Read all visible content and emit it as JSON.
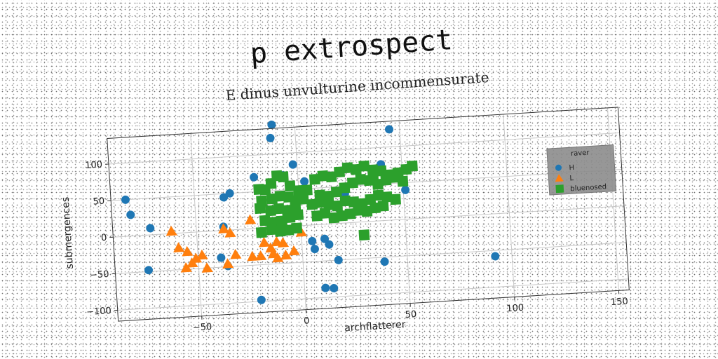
{
  "chart_data": {
    "type": "scatter",
    "title": "p extrospect",
    "subtitle": "E dinus unvulturine incommensurate",
    "xlabel": "archflatterer",
    "ylabel": "submergences",
    "xlim": [
      -90,
      155
    ],
    "ylim": [
      -115,
      135
    ],
    "xticks": [
      -50,
      0,
      50,
      100,
      150
    ],
    "yticks": [
      -100,
      -50,
      0,
      50,
      100
    ],
    "grid": true,
    "legend": {
      "title": "raver",
      "placement": "right"
    },
    "series": [
      {
        "name": "H",
        "marker": "circle",
        "color": "#1f77b4",
        "points": [
          [
            -83,
            50
          ],
          [
            -81,
            29
          ],
          [
            -72,
            9
          ],
          [
            -74,
            -48
          ],
          [
            -36,
            45
          ],
          [
            -33,
            50
          ],
          [
            -37,
            5
          ],
          [
            -39,
            -37
          ],
          [
            -36,
            -49
          ],
          [
            -21,
            70
          ],
          [
            -11,
            140
          ],
          [
            -12,
            122
          ],
          [
            -7,
            70
          ],
          [
            -2,
            84
          ],
          [
            45,
            124
          ],
          [
            40,
            77
          ],
          [
            51,
            40
          ],
          [
            22,
            40
          ],
          [
            3,
            60
          ],
          [
            6,
            -33
          ],
          [
            13,
            -28
          ],
          [
            11,
            -20
          ],
          [
            17,
            -50
          ],
          [
            5,
            -22
          ],
          [
            -21,
            -98
          ],
          [
            10,
            -87
          ],
          [
            14,
            -88
          ],
          [
            39,
            -56
          ],
          [
            92,
            -58
          ]
        ]
      },
      {
        "name": "L",
        "marker": "triangle",
        "color": "#ff7f0e",
        "points": [
          [
            -62,
            3
          ],
          [
            -59,
            -20
          ],
          [
            -55,
            -26
          ],
          [
            -51,
            -36
          ],
          [
            -53,
            -42
          ],
          [
            -48,
            -32
          ],
          [
            -56,
            -48
          ],
          [
            -46,
            -50
          ],
          [
            -37,
            2
          ],
          [
            -34,
            -4
          ],
          [
            -32,
            -34
          ],
          [
            -36,
            -46
          ],
          [
            -24,
            12
          ],
          [
            -18,
            -20
          ],
          [
            -15,
            -28
          ],
          [
            -20,
            -38
          ],
          [
            -12,
            -20
          ],
          [
            -9,
            -22
          ],
          [
            -12,
            -42
          ],
          [
            -8,
            -39
          ],
          [
            -4,
            -34
          ],
          [
            0,
            -9
          ],
          [
            -24,
            -38
          ],
          [
            -14,
            -36
          ]
        ]
      },
      {
        "name": "bluenosed",
        "marker": "square",
        "color": "#2ca02c",
        "points": [
          [
            -19,
            53
          ],
          [
            -16,
            52
          ],
          [
            -13,
            60
          ],
          [
            -10,
            70
          ],
          [
            -7,
            68
          ],
          [
            -4,
            55
          ],
          [
            -18,
            37
          ],
          [
            -13,
            39
          ],
          [
            -9,
            42
          ],
          [
            -5,
            40
          ],
          [
            -19,
            27
          ],
          [
            -14,
            23
          ],
          [
            -10,
            25
          ],
          [
            -6,
            22
          ],
          [
            -2,
            26
          ],
          [
            -17,
            10
          ],
          [
            -13,
            7
          ],
          [
            -9,
            8
          ],
          [
            -5,
            12
          ],
          [
            -1,
            15
          ],
          [
            -19,
            -6
          ],
          [
            -14,
            -3
          ],
          [
            -10,
            -6
          ],
          [
            -6,
            -5
          ],
          [
            -2,
            -3
          ],
          [
            0,
            48
          ],
          [
            4,
            48
          ],
          [
            10,
            40
          ],
          [
            14,
            38
          ],
          [
            18,
            43
          ],
          [
            22,
            48
          ],
          [
            26,
            54
          ],
          [
            30,
            58
          ],
          [
            34,
            56
          ],
          [
            38,
            50
          ],
          [
            42,
            55
          ],
          [
            46,
            58
          ],
          [
            50,
            52
          ],
          [
            8,
            62
          ],
          [
            12,
            66
          ],
          [
            16,
            64
          ],
          [
            20,
            70
          ],
          [
            24,
            75
          ],
          [
            28,
            72
          ],
          [
            32,
            76
          ],
          [
            36,
            70
          ],
          [
            40,
            68
          ],
          [
            44,
            62
          ],
          [
            48,
            64
          ],
          [
            52,
            68
          ],
          [
            55,
            72
          ],
          [
            6,
            28
          ],
          [
            10,
            30
          ],
          [
            14,
            26
          ],
          [
            18,
            24
          ],
          [
            22,
            30
          ],
          [
            26,
            28
          ],
          [
            30,
            25
          ],
          [
            34,
            30
          ],
          [
            38,
            35
          ],
          [
            42,
            32
          ],
          [
            46,
            28
          ],
          [
            8,
            12
          ],
          [
            12,
            15
          ],
          [
            16,
            8
          ],
          [
            20,
            10
          ],
          [
            24,
            12
          ],
          [
            28,
            16
          ],
          [
            32,
            14
          ],
          [
            36,
            18
          ],
          [
            40,
            20
          ],
          [
            30,
            -18
          ],
          [
            -2,
            34
          ],
          [
            2,
            36
          ],
          [
            36,
            60
          ]
        ]
      }
    ]
  }
}
